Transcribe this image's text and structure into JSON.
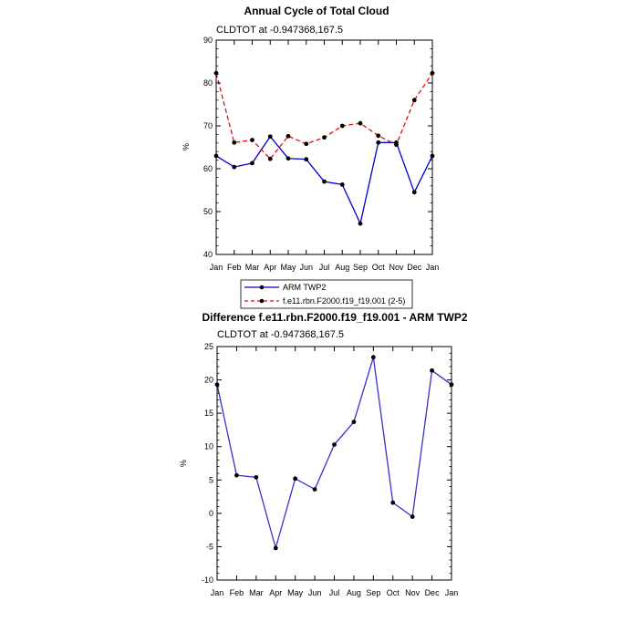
{
  "chart_data": [
    {
      "type": "line",
      "title": "Annual Cycle of Total Cloud",
      "subtitle": "CLDTOT at -0.947368,167.5",
      "xlabel": "",
      "ylabel": "%",
      "categories": [
        "Jan",
        "Feb",
        "Mar",
        "Apr",
        "May",
        "Jun",
        "Jul",
        "Aug",
        "Sep",
        "Oct",
        "Nov",
        "Dec",
        "Jan"
      ],
      "ylim": [
        40,
        90
      ],
      "yticks": [
        40,
        50,
        60,
        70,
        80,
        90
      ],
      "series": [
        {
          "name": "ARM TWP2",
          "color": "#0000cc",
          "dash": "solid",
          "values": [
            63.0,
            60.4,
            61.3,
            67.5,
            62.4,
            62.2,
            57.0,
            56.3,
            47.2,
            66.1,
            66.1,
            54.5,
            63.0
          ]
        },
        {
          "name": "f.e11.rbn.F2000.f19_f19.001 (2-5)",
          "color": "#e01010",
          "dash": "dashed",
          "values": [
            82.3,
            66.1,
            66.7,
            62.3,
            67.6,
            65.8,
            67.3,
            70.0,
            70.6,
            67.7,
            65.6,
            76.0,
            82.3
          ]
        }
      ]
    },
    {
      "type": "line",
      "title": "Difference f.e11.rbn.F2000.f19_f19.001 - ARM TWP2",
      "subtitle": "CLDTOT at -0.947368,167.5",
      "xlabel": "",
      "ylabel": "%",
      "categories": [
        "Jan",
        "Feb",
        "Mar",
        "Apr",
        "May",
        "Jun",
        "Jul",
        "Aug",
        "Sep",
        "Oct",
        "Nov",
        "Dec",
        "Jan"
      ],
      "ylim": [
        -10,
        25
      ],
      "yticks": [
        -10,
        -5,
        0,
        5,
        10,
        15,
        20,
        25
      ],
      "ytick_labels": [
        "-10",
        "-5",
        "0",
        "5",
        "10",
        "15",
        "20",
        "25"
      ],
      "series": [
        {
          "name": "Difference",
          "color": "#3333cc",
          "dash": "solid",
          "values": [
            19.3,
            5.7,
            5.4,
            -5.2,
            5.2,
            3.6,
            10.3,
            13.7,
            23.4,
            1.6,
            -0.5,
            21.4,
            19.3
          ]
        }
      ]
    }
  ]
}
